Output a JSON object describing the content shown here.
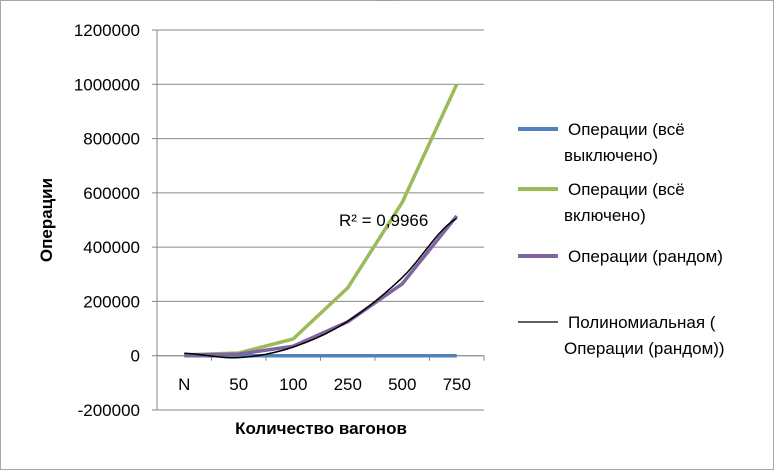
{
  "chart_data": {
    "type": "line",
    "categories": [
      "N",
      "50",
      "100",
      "250",
      "500",
      "750"
    ],
    "xlabel": "Количество вагонов",
    "ylabel": "Операции",
    "ylim": [
      -200000,
      1200000
    ],
    "yticks": [
      -200000,
      0,
      200000,
      400000,
      600000,
      800000,
      1000000,
      1200000
    ],
    "grid": "horizontal",
    "legend_position": "right",
    "series": [
      {
        "name": "Операции (всё выключено)",
        "color": "#4f81bd",
        "values": [
          0,
          0,
          0,
          0,
          0,
          0
        ]
      },
      {
        "name": "Операции (всё включено)",
        "color": "#9bbb59",
        "values": [
          3000,
          10000,
          62000,
          250000,
          565000,
          1000000
        ]
      },
      {
        "name": "Операции (рандом)",
        "color": "#8064a2",
        "values": [
          2000,
          6000,
          35000,
          125000,
          265000,
          515000
        ]
      }
    ],
    "trendline": {
      "name": "Полиномиальная (Операции (рандом))",
      "color": "#000000",
      "values": [
        9000,
        -7000,
        32000,
        127000,
        288000,
        506000
      ],
      "r2_label": "R² = 0,9966"
    }
  }
}
